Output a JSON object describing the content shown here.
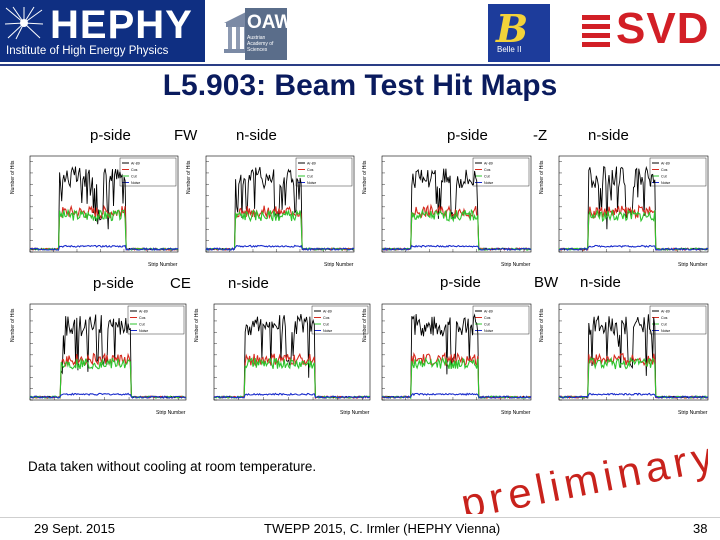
{
  "header": {
    "hephy_name": "HEPHY",
    "hephy_subtitle": "Institute of High Energy Physics",
    "oaw_name": "OAW",
    "oaw_subtitle": "Austrian Academy of Sciences",
    "belle_mark": "B",
    "belle_subtitle": "Belle II",
    "svd_name": "SVD",
    "colors": {
      "hephy_blue": "#0f2f82",
      "svd_red": "#d21f26",
      "belle_blue": "#1d3c9b"
    }
  },
  "title": "L5.903: Beam Test Hit Maps",
  "panels": [
    {
      "left": "p-side",
      "middle": "FW",
      "right": "n-side"
    },
    {
      "left": "p-side",
      "middle": "-Z",
      "right": "n-side"
    },
    {
      "left": "p-side",
      "middle": "CE",
      "right": "n-side"
    },
    {
      "left": "p-side",
      "middle": "BW",
      "right": "n-side"
    }
  ],
  "plot_axes": {
    "xlabel": "Strip Number",
    "ylabel": "Number of Hits"
  },
  "chart_data": [
    {
      "type": "line",
      "xlabel": "Strip Number",
      "ylabel": "Number of Hits",
      "xlim": [
        1,
        768
      ],
      "series": [
        {
          "name": "Ar-89"
        },
        {
          "name": "Cos"
        },
        {
          "name": "Cut"
        },
        {
          "name": "Noise"
        }
      ]
    },
    {
      "type": "line",
      "xlabel": "Strip Number",
      "ylabel": "Number of Hits",
      "xlim": [
        1,
        512
      ],
      "series": [
        {
          "name": "Ar-89"
        },
        {
          "name": "Cos"
        },
        {
          "name": "Cut"
        },
        {
          "name": "Noise"
        }
      ]
    },
    {
      "type": "line",
      "xlabel": "Strip Number",
      "ylabel": "Number of Hits",
      "xlim": [
        1,
        768
      ],
      "series": [
        {
          "name": "Ar-89"
        },
        {
          "name": "Cos"
        },
        {
          "name": "Cut"
        },
        {
          "name": "Noise"
        }
      ]
    },
    {
      "type": "line",
      "xlabel": "Strip Number",
      "ylabel": "Number of Hits",
      "xlim": [
        1,
        512
      ],
      "series": [
        {
          "name": "Ar-89"
        },
        {
          "name": "Cos"
        },
        {
          "name": "Cut"
        },
        {
          "name": "Noise"
        }
      ]
    },
    {
      "type": "line",
      "xlabel": "Strip Number",
      "ylabel": "Number of Hits",
      "xlim": [
        1,
        768
      ],
      "series": [
        {
          "name": "Ar-89"
        },
        {
          "name": "Cos"
        },
        {
          "name": "Cut"
        },
        {
          "name": "Noise"
        }
      ]
    },
    {
      "type": "line",
      "xlabel": "Strip Number",
      "ylabel": "Number of Hits",
      "xlim": [
        1,
        512
      ],
      "series": [
        {
          "name": "Ar-89"
        },
        {
          "name": "Cos"
        },
        {
          "name": "Cut"
        },
        {
          "name": "Noise"
        }
      ]
    },
    {
      "type": "line",
      "xlabel": "Strip Number",
      "ylabel": "Number of Hits",
      "xlim": [
        1,
        768
      ],
      "series": [
        {
          "name": "Ar-89"
        },
        {
          "name": "Cos"
        },
        {
          "name": "Cut"
        },
        {
          "name": "Noise"
        }
      ]
    },
    {
      "type": "line",
      "xlabel": "Strip Number",
      "ylabel": "Number of Hits",
      "xlim": [
        1,
        512
      ],
      "series": [
        {
          "name": "Ar-89"
        },
        {
          "name": "Cos"
        },
        {
          "name": "Cut"
        },
        {
          "name": "Noise"
        }
      ]
    }
  ],
  "note": "Data taken without cooling at room temperature.",
  "watermark": "preliminary",
  "footer": {
    "date": "29 Sept. 2015",
    "center": "TWEPP 2015, C. Irmler (HEPHY Vienna)",
    "page": "38"
  },
  "colors": {
    "title": "#0a1b5e",
    "black_series": "#000000",
    "red_series": "#d62b1f",
    "green_series": "#2ec42e",
    "blue_series": "#1a2ccc"
  }
}
